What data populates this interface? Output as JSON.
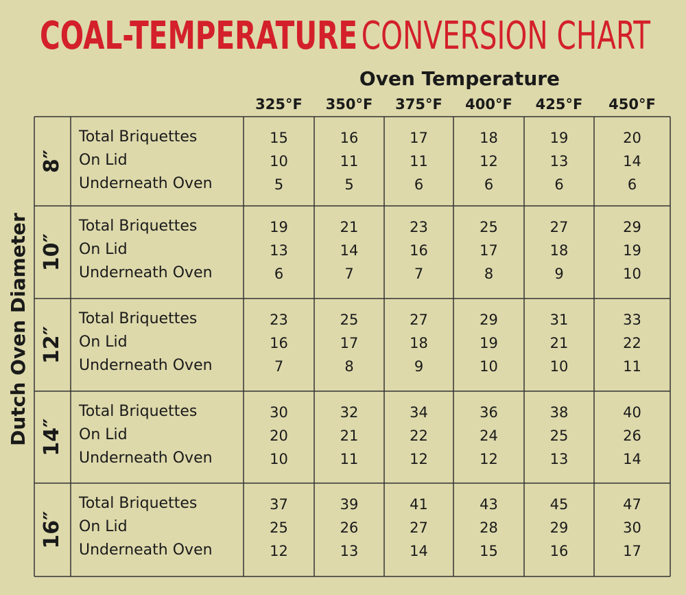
{
  "header": {
    "title_bold": "COAL-TEMPERATURE",
    "title_light": "CONVERSION CHART",
    "column_title": "Oven Temperature",
    "row_title": "Dutch Oven Diameter"
  },
  "table": {
    "columns": [
      "325°F",
      "350°F",
      "375°F",
      "400°F",
      "425°F",
      "450°F"
    ],
    "row_labels": [
      "Total Briquettes",
      "On Lid",
      "Underneath Oven"
    ],
    "groups": [
      {
        "size": "8″",
        "rows": [
          [
            15,
            16,
            17,
            18,
            19,
            20
          ],
          [
            10,
            11,
            11,
            12,
            13,
            14
          ],
          [
            5,
            5,
            6,
            6,
            6,
            6
          ]
        ]
      },
      {
        "size": "10″",
        "rows": [
          [
            19,
            21,
            23,
            25,
            27,
            29
          ],
          [
            13,
            14,
            16,
            17,
            18,
            19
          ],
          [
            6,
            7,
            7,
            8,
            9,
            10
          ]
        ]
      },
      {
        "size": "12″",
        "rows": [
          [
            23,
            25,
            27,
            29,
            31,
            33
          ],
          [
            16,
            17,
            18,
            19,
            21,
            22
          ],
          [
            7,
            8,
            9,
            10,
            10,
            11
          ]
        ]
      },
      {
        "size": "14″",
        "rows": [
          [
            30,
            32,
            34,
            36,
            38,
            40
          ],
          [
            20,
            21,
            22,
            24,
            25,
            26
          ],
          [
            10,
            11,
            12,
            12,
            13,
            14
          ]
        ]
      },
      {
        "size": "16″",
        "rows": [
          [
            37,
            39,
            41,
            43,
            45,
            47
          ],
          [
            25,
            26,
            27,
            28,
            29,
            30
          ],
          [
            12,
            13,
            14,
            15,
            16,
            17
          ]
        ]
      }
    ]
  }
}
